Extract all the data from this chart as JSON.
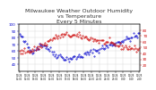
{
  "title": "Milwaukee Weather Outdoor Humidity\nvs Temperature\nEvery 5 Minutes",
  "title_fontsize": 4.5,
  "background_color": "#ffffff",
  "grid_color": "#cccccc",
  "humidity_color": "#0000cc",
  "temperature_color": "#cc0000",
  "ylim_left": [
    30,
    100
  ],
  "ylim_right": [
    10,
    90
  ],
  "y_left_ticks": [
    40,
    50,
    60,
    70,
    80,
    90,
    100
  ],
  "y_right_ticks": [
    20,
    30,
    40,
    50,
    60,
    70,
    80
  ],
  "tick_fontsize": 3.0,
  "marker_size": 0.8,
  "n_points": 120,
  "seed": 42
}
